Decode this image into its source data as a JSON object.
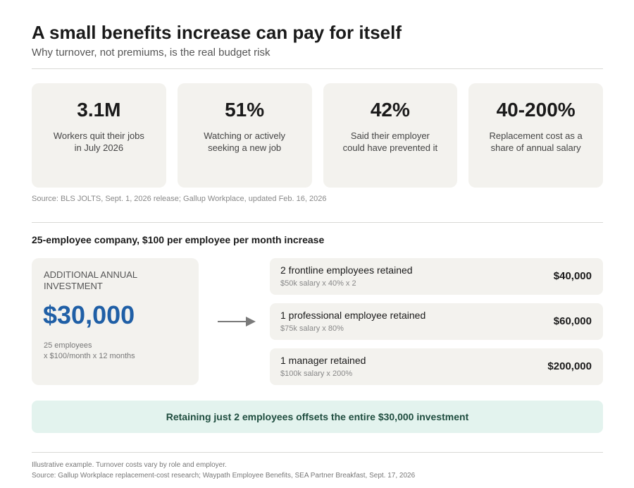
{
  "header": {
    "title": "A small benefits increase can pay for itself",
    "subtitle": "Why turnover, not premiums, is the real budget risk"
  },
  "stats": [
    {
      "value": "3.1M",
      "label_line1": "Workers quit their jobs",
      "label_line2": "in July 2026"
    },
    {
      "value": "51%",
      "label_line1": "Watching or actively",
      "label_line2": "seeking a new job"
    },
    {
      "value": "42%",
      "label_line1": "Said their employer",
      "label_line2": "could have prevented it"
    },
    {
      "value": "40-200%",
      "label_line1": "Replacement cost as a",
      "label_line2": "share of annual salary"
    }
  ],
  "stats_source": "Source: BLS JOLTS, Sept. 1, 2026 release; Gallup Workplace, updated Feb. 16, 2026",
  "scenario": {
    "heading": "25-employee company, $100 per employee per month increase",
    "investment": {
      "label": "Additional annual investment",
      "value": "$30,000",
      "note_line1": "25 employees",
      "note_line2": "x $100/month x 12 months"
    },
    "retention": [
      {
        "title": "2 frontline employees retained",
        "calc": "$50k salary x 40% x 2",
        "amount": "$40,000"
      },
      {
        "title": "1 professional employee retained",
        "calc": "$75k salary x 80%",
        "amount": "$60,000"
      },
      {
        "title": "1 manager retained",
        "calc": "$100k salary x 200%",
        "amount": "$200,000"
      }
    ]
  },
  "banner": "Retaining just 2 employees offsets the entire $30,000 investment",
  "footer": {
    "note": "Illustrative example. Turnover costs vary by role and employer.",
    "source": "Source: Gallup Workplace replacement-cost research; Waypath Employee Benefits, SEA Partner Breakfast, Sept. 17, 2026"
  },
  "colors": {
    "accent_blue": "#1f5fa6",
    "card_bg": "#f3f2ee",
    "banner_bg": "#e3f3ee",
    "banner_text": "#1f4d3f"
  }
}
